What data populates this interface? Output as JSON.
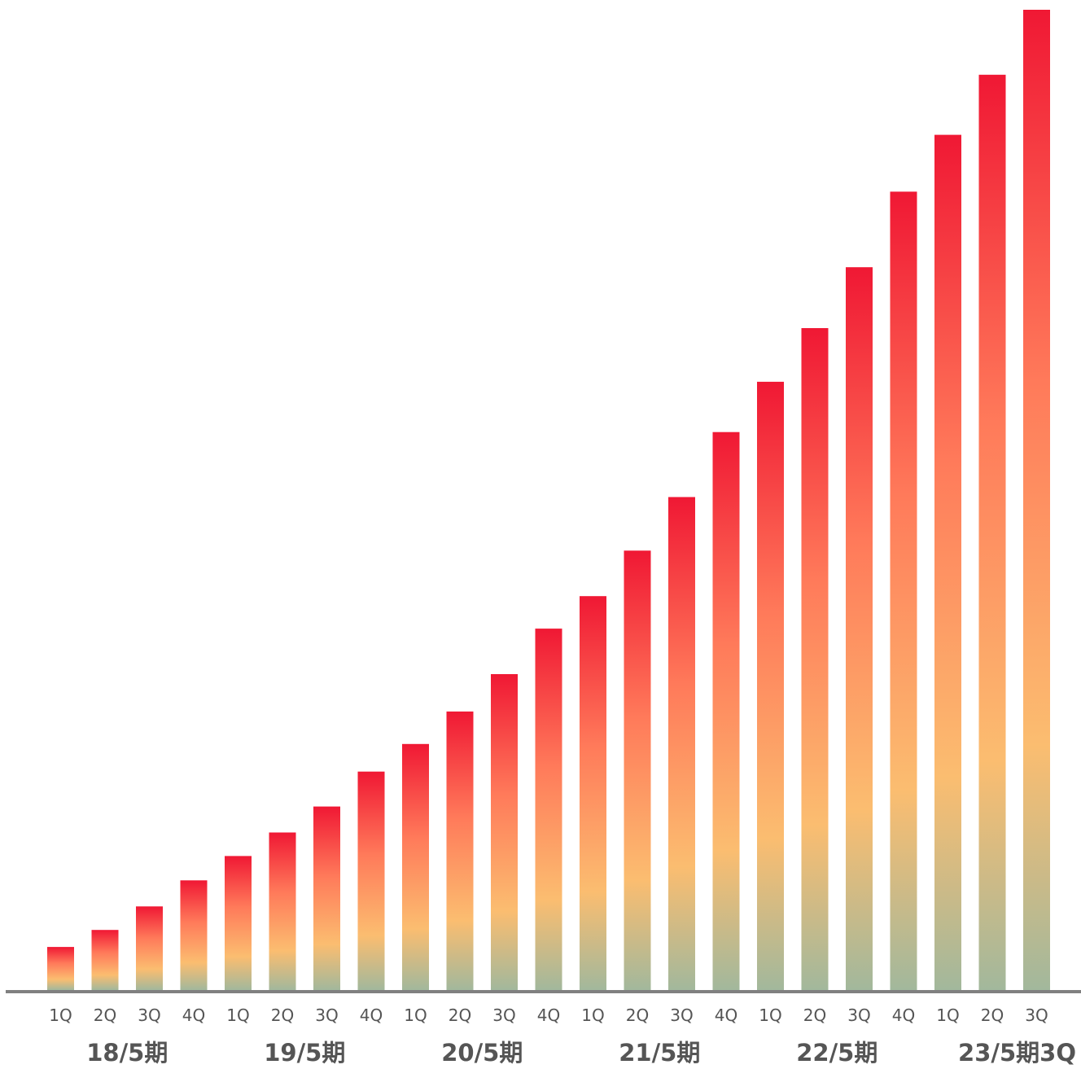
{
  "colors": {
    "bar_top": "#f01834",
    "bar_mid1": "#ff7a5a",
    "bar_mid2": "#fbbd70",
    "bar_bottom": "#a2b89c",
    "axis": "#808080",
    "text": "#555555",
    "background": "#ffffff"
  },
  "chart_data": {
    "type": "bar",
    "title": "",
    "xlabel": "",
    "ylabel": "",
    "y_axis_shown": false,
    "grid": false,
    "ylim": [
      0,
      1209
    ],
    "categories": [
      "1Q",
      "2Q",
      "3Q",
      "4Q",
      "1Q",
      "2Q",
      "3Q",
      "4Q",
      "1Q",
      "2Q",
      "3Q",
      "4Q",
      "1Q",
      "2Q",
      "3Q",
      "4Q",
      "1Q",
      "2Q",
      "3Q",
      "4Q",
      "1Q",
      "2Q",
      "3Q"
    ],
    "values": [
      53,
      74,
      103,
      135,
      165,
      194,
      226,
      269,
      303,
      343,
      389,
      445,
      485,
      541,
      607,
      687,
      749,
      815,
      890,
      983,
      1053,
      1127,
      1207
    ],
    "groups": [
      {
        "label": "18/5期",
        "start": 0,
        "end": 3
      },
      {
        "label": "19/5期",
        "start": 4,
        "end": 7
      },
      {
        "label": "20/5期",
        "start": 8,
        "end": 11
      },
      {
        "label": "21/5期",
        "start": 12,
        "end": 15
      },
      {
        "label": "22/5期",
        "start": 16,
        "end": 19
      },
      {
        "label": "23/5期3Q",
        "start": 20,
        "end": 22
      }
    ]
  }
}
